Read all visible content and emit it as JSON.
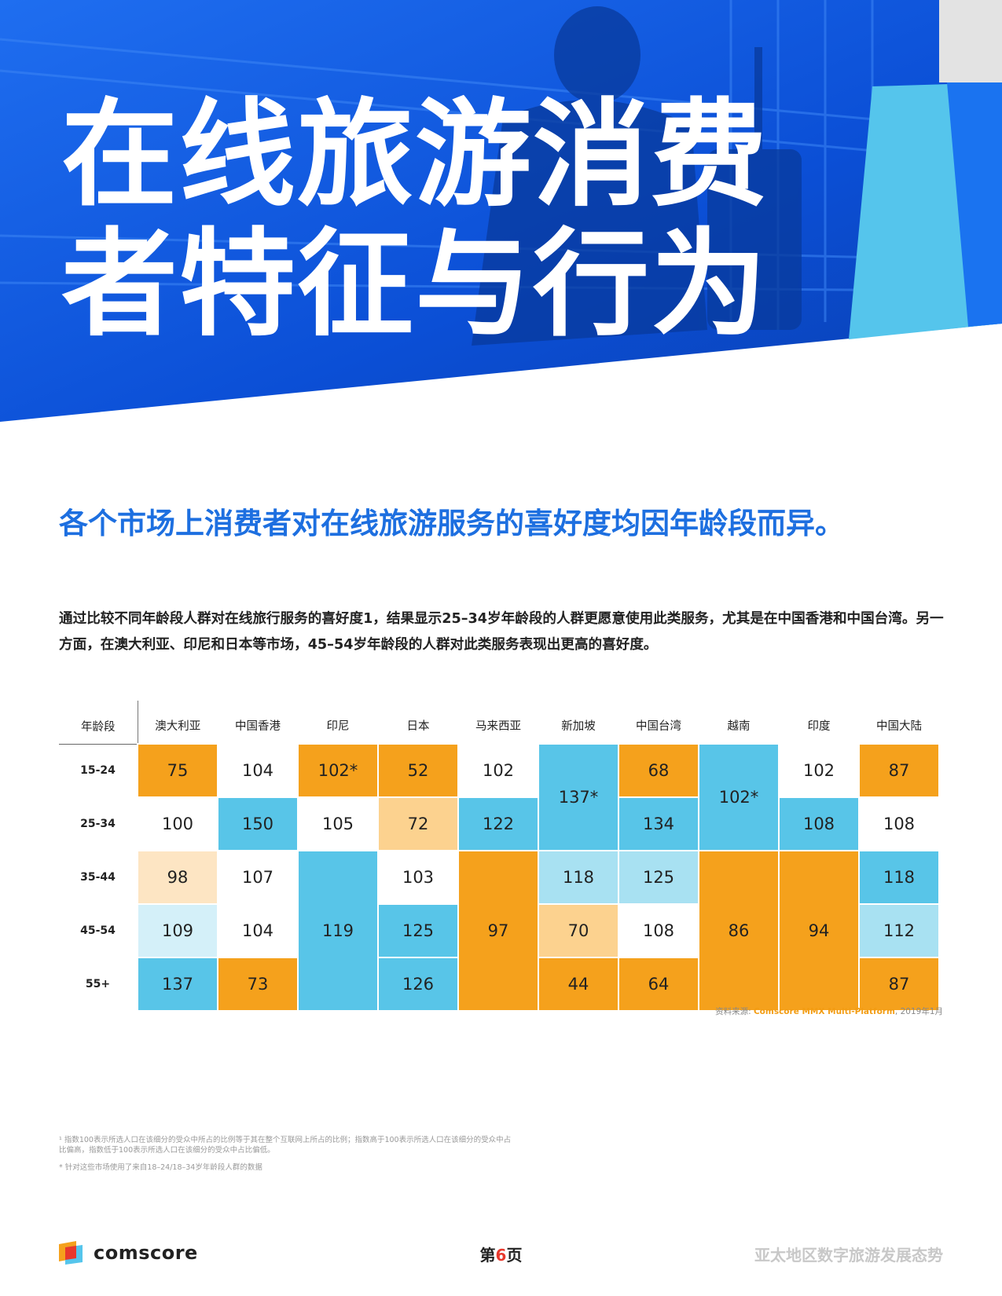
{
  "hero": {
    "title_line1": "在线旅游消费",
    "title_line2": "者特征与行为"
  },
  "headline": "各个市场上消费者对在线旅游服务的喜好度均因年龄段而异。",
  "intro": "通过比较不同年龄段人群对在线旅行服务的喜好度1，结果显示25–34岁年龄段的人群更愿意使用此类服务，尤其是在中国香港和中国台湾。另一方面，在澳大利亚、印尼和日本等市场，45–54岁年龄段的人群对此类服务表现出更高的喜好度。",
  "table": {
    "corner": "年龄段",
    "markets": [
      "澳大利亚",
      "中国香港",
      "印尼",
      "日本",
      "马来西亚",
      "新加坡",
      "中国台湾",
      "越南",
      "印度",
      "中国大陆"
    ],
    "rows": [
      {
        "age": "15-24",
        "cells": [
          {
            "v": "75",
            "c": "#f5a11c",
            "rs": 1
          },
          {
            "v": "104",
            "c": "#ffffff",
            "rs": 1
          },
          {
            "v": "102*",
            "c": "#f5a11c",
            "rs": 1
          },
          {
            "v": "52",
            "c": "#f5a11c",
            "rs": 1
          },
          {
            "v": "102",
            "c": "#ffffff",
            "rs": 1
          },
          {
            "v": "137*",
            "c": "#58c5e8",
            "rs": 2
          },
          {
            "v": "68",
            "c": "#f5a11c",
            "rs": 1
          },
          {
            "v": "102*",
            "c": "#58c5e8",
            "rs": 2
          },
          {
            "v": "102",
            "c": "#ffffff",
            "rs": 1
          },
          {
            "v": "87",
            "c": "#f5a11c",
            "rs": 1
          }
        ]
      },
      {
        "age": "25-34",
        "cells": [
          {
            "v": "100",
            "c": "#ffffff",
            "rs": 1
          },
          {
            "v": "150",
            "c": "#58c5e8",
            "rs": 1
          },
          {
            "v": "105",
            "c": "#ffffff",
            "rs": 1
          },
          {
            "v": "72",
            "c": "#fcd28f",
            "rs": 1
          },
          {
            "v": "122",
            "c": "#58c5e8",
            "rs": 1
          },
          {
            "v": "134",
            "c": "#58c5e8",
            "rs": 1
          },
          {
            "v": "108",
            "c": "#58c5e8",
            "rs": 1
          },
          {
            "v": "108",
            "c": "#ffffff",
            "rs": 1
          }
        ]
      },
      {
        "age": "35-44",
        "cells": [
          {
            "v": "98",
            "c": "#fde5c3",
            "rs": 1
          },
          {
            "v": "107",
            "c": "#ffffff",
            "rs": 1
          },
          {
            "v": "119",
            "c": "#58c5e8",
            "rs": 3
          },
          {
            "v": "103",
            "c": "#ffffff",
            "rs": 1
          },
          {
            "v": "97",
            "c": "#f5a11c",
            "rs": 3
          },
          {
            "v": "118",
            "c": "#a8e1f2",
            "rs": 1
          },
          {
            "v": "125",
            "c": "#a8e1f2",
            "rs": 1
          },
          {
            "v": "86",
            "c": "#f5a11c",
            "rs": 3
          },
          {
            "v": "94",
            "c": "#f5a11c",
            "rs": 3
          },
          {
            "v": "118",
            "c": "#58c5e8",
            "rs": 1
          }
        ]
      },
      {
        "age": "45-54",
        "cells": [
          {
            "v": "109",
            "c": "#d4f0f9",
            "rs": 1
          },
          {
            "v": "104",
            "c": "#ffffff",
            "rs": 1
          },
          {
            "v": "125",
            "c": "#58c5e8",
            "rs": 1
          },
          {
            "v": "70",
            "c": "#fcd28f",
            "rs": 1
          },
          {
            "v": "108",
            "c": "#ffffff",
            "rs": 1
          },
          {
            "v": "112",
            "c": "#a8e1f2",
            "rs": 1
          }
        ]
      },
      {
        "age": "55+",
        "cells": [
          {
            "v": "137",
            "c": "#58c5e8",
            "rs": 1
          },
          {
            "v": "73",
            "c": "#f5a11c",
            "rs": 1
          },
          {
            "v": "126",
            "c": "#58c5e8",
            "rs": 1
          },
          {
            "v": "44",
            "c": "#f5a11c",
            "rs": 1
          },
          {
            "v": "64",
            "c": "#f5a11c",
            "rs": 1
          },
          {
            "v": "87",
            "c": "#f5a11c",
            "rs": 1
          }
        ]
      }
    ]
  },
  "source": {
    "prefix": "资料来源: ",
    "brand": "Comscore MMX Multi-Platform",
    "suffix": ", 2019年1月"
  },
  "notes": [
    "¹ 指数100表示所选人口在该细分的受众中所占的比例等于其在整个互联网上所占的比例；指数高于100表示所选人口在该细分的受众中占比偏高，指数低于100表示所选人口在该细分的受众中占比偏低。",
    "* 针对这些市场使用了来自18–24/18–34岁年龄段人群的数据"
  ],
  "footer": {
    "logo_text": "comscore",
    "page_prefix": "第",
    "page_number": "6",
    "page_suffix": "页",
    "report_title": "亚太地区数字旅游发展态势"
  }
}
